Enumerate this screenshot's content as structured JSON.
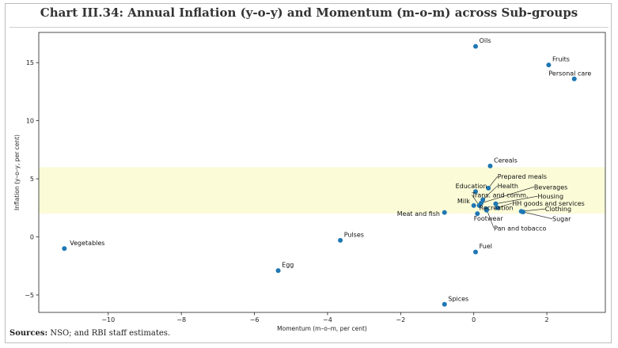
{
  "page": {
    "title": "Chart III.34: Annual Inflation (y-o-y) and Momentum (m-o-m) across Sub-groups",
    "source_label": "Sources:",
    "source_text": " NSO; and RBI staff estimates."
  },
  "chart_data": {
    "type": "scatter",
    "title": "Chart III.34: Annual Inflation (y-o-y) and Momentum (m-o-m) across Sub-groups",
    "xlabel": "Momentum (m–o–m, per cent)",
    "ylabel": "Inflation (y–o–y, per cent)",
    "xlim": [
      -11.9,
      3.6
    ],
    "ylim": [
      -6.5,
      17.6
    ],
    "xticks": [
      -10,
      -8,
      -6,
      -4,
      -2,
      0,
      2
    ],
    "xtick_labels": [
      "−10",
      "−8",
      "−6",
      "−4",
      "−2",
      "0",
      "2"
    ],
    "yticks": [
      -5,
      0,
      5,
      10,
      15
    ],
    "ytick_labels": [
      "−5",
      "0",
      "5",
      "10",
      "15"
    ],
    "tolerance_band": [
      2,
      6
    ],
    "colors": {
      "point": "#1f77b4",
      "band": "#fbfbd8",
      "axis": "#222222"
    },
    "points": [
      {
        "name": "Oils",
        "x": 0.05,
        "y": 16.4
      },
      {
        "name": "Fruits",
        "x": 2.05,
        "y": 14.8
      },
      {
        "name": "Personal care",
        "x": 2.75,
        "y": 13.6
      },
      {
        "name": "Cereals",
        "x": 0.45,
        "y": 6.1
      },
      {
        "name": "Prepared meals",
        "x": 0.4,
        "y": 4.2
      },
      {
        "name": "Education",
        "x": 0.05,
        "y": 3.9
      },
      {
        "name": "Health",
        "x": 0.25,
        "y": 3.2
      },
      {
        "name": "Beverages",
        "x": 0.2,
        "y": 2.9
      },
      {
        "name": "Trans. and comm.",
        "x": 0.15,
        "y": 2.7
      },
      {
        "name": "Housing",
        "x": 0.6,
        "y": 2.85
      },
      {
        "name": "Milk",
        "x": 0.0,
        "y": 2.7
      },
      {
        "name": "HH goods and services",
        "x": 0.65,
        "y": 2.5
      },
      {
        "name": "Recreation",
        "x": 0.35,
        "y": 2.3
      },
      {
        "name": "Clothing",
        "x": 1.3,
        "y": 2.2
      },
      {
        "name": "Meat and fish",
        "x": -0.8,
        "y": 2.1
      },
      {
        "name": "Footwear",
        "x": 0.1,
        "y": 2.0
      },
      {
        "name": "Sugar",
        "x": 1.35,
        "y": 2.15
      },
      {
        "name": "Pan and tobacco",
        "x": 0.35,
        "y": 2.4
      },
      {
        "name": "Vegetables",
        "x": -11.2,
        "y": -1.0
      },
      {
        "name": "Pulses",
        "x": -3.65,
        "y": -0.3
      },
      {
        "name": "Fuel",
        "x": 0.05,
        "y": -1.3
      },
      {
        "name": "Egg",
        "x": -5.35,
        "y": -2.9
      },
      {
        "name": "Spices",
        "x": -0.8,
        "y": -5.8
      }
    ],
    "annotations": [
      {
        "label": "Oils",
        "anchor": "Oils",
        "tx": 0.15,
        "ty": 16.7,
        "leader": false
      },
      {
        "label": "Fruits",
        "anchor": "Fruits",
        "tx": 2.15,
        "ty": 15.1,
        "leader": false
      },
      {
        "label": "Personal care",
        "anchor": "Personal care",
        "tx": 2.05,
        "ty": 13.9,
        "leader": false
      },
      {
        "label": "Cereals",
        "anchor": "Cereals",
        "tx": 0.55,
        "ty": 6.4,
        "leader": false
      },
      {
        "label": "Prepared meals",
        "anchor": "Prepared meals",
        "tx": 0.65,
        "ty": 5.0,
        "leader": true
      },
      {
        "label": "Education",
        "anchor": "Education",
        "tx": -0.5,
        "ty": 4.2,
        "leader": false
      },
      {
        "label": "Health",
        "anchor": "Health",
        "tx": 0.65,
        "ty": 4.2,
        "leader": true
      },
      {
        "label": "Beverages",
        "anchor": "Beverages",
        "tx": 1.65,
        "ty": 4.1,
        "leader": true
      },
      {
        "label": "Trans. and comm.",
        "anchor": "Trans. and comm.",
        "tx": -0.05,
        "ty": 3.4,
        "leader": true
      },
      {
        "label": "Housing",
        "anchor": "Housing",
        "tx": 1.75,
        "ty": 3.3,
        "leader": true
      },
      {
        "label": "Milk",
        "anchor": "Milk",
        "tx": -0.45,
        "ty": 2.9,
        "leader": false
      },
      {
        "label": "HH goods and services",
        "anchor": "HH goods and services",
        "tx": 1.05,
        "ty": 2.7,
        "leader": true
      },
      {
        "label": "Recreation",
        "anchor": "Recreation",
        "tx": 0.15,
        "ty": 2.3,
        "leader": false
      },
      {
        "label": "Clothing",
        "anchor": "Clothing",
        "tx": 1.95,
        "ty": 2.2,
        "leader": true
      },
      {
        "label": "Meat and fish",
        "anchor": "Meat and fish",
        "tx": -2.1,
        "ty": 1.8,
        "leader": false
      },
      {
        "label": "Footwear",
        "anchor": "Footwear",
        "tx": 0.0,
        "ty": 1.4,
        "leader": false
      },
      {
        "label": "Sugar",
        "anchor": "Sugar",
        "tx": 2.15,
        "ty": 1.35,
        "leader": true
      },
      {
        "label": "Pan and tobacco",
        "anchor": "Pan and tobacco",
        "tx": 0.55,
        "ty": 0.55,
        "leader": true
      },
      {
        "label": "Vegetables",
        "anchor": "Vegetables",
        "tx": -11.05,
        "ty": -0.7,
        "leader": false
      },
      {
        "label": "Pulses",
        "anchor": "Pulses",
        "tx": -3.55,
        "ty": 0.0,
        "leader": false
      },
      {
        "label": "Fuel",
        "anchor": "Fuel",
        "tx": 0.15,
        "ty": -1.0,
        "leader": false
      },
      {
        "label": "Egg",
        "anchor": "Egg",
        "tx": -5.25,
        "ty": -2.6,
        "leader": false
      },
      {
        "label": "Spices",
        "anchor": "Spices",
        "tx": -0.7,
        "ty": -5.5,
        "leader": false
      }
    ]
  }
}
